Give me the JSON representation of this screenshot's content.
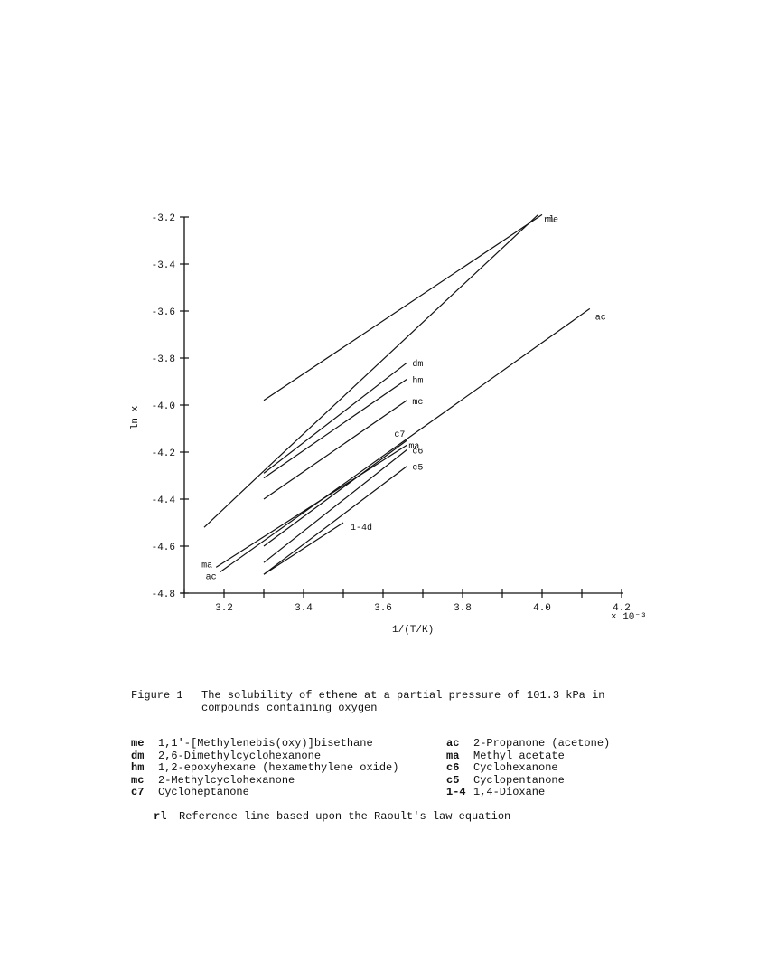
{
  "chart_data": {
    "type": "line",
    "title": "",
    "xlabel": "1/(T/K)",
    "x_multiplier": "× 10⁻³",
    "ylabel": "ln x",
    "xlim": [
      3.1,
      4.2
    ],
    "ylim": [
      -4.8,
      -3.2
    ],
    "x_ticks": [
      "3.2",
      "3.4",
      "3.6",
      "3.8",
      "4.0",
      "4.2"
    ],
    "x_tick_values": [
      3.2,
      3.4,
      3.6,
      3.8,
      4.0,
      4.2
    ],
    "y_ticks": [
      "-3.2",
      "-3.4",
      "-3.6",
      "-3.8",
      "-4.0",
      "-4.2",
      "-4.4",
      "-4.6",
      "-4.8"
    ],
    "y_tick_values": [
      -3.2,
      -3.4,
      -3.6,
      -3.8,
      -4.0,
      -4.2,
      -4.4,
      -4.6,
      -4.8
    ],
    "grid": false,
    "series": [
      {
        "name": "me",
        "x": [
          3.3,
          4.0
        ],
        "y": [
          -3.98,
          -3.19
        ]
      },
      {
        "name": "rl",
        "x": [
          3.3,
          3.99
        ],
        "y": [
          -4.28,
          -3.19
        ]
      },
      {
        "name": "ac",
        "x": [
          3.19,
          4.12
        ],
        "y": [
          -4.71,
          -3.59
        ]
      },
      {
        "name": "dm",
        "x": [
          3.3,
          3.66
        ],
        "y": [
          -4.29,
          -3.82
        ]
      },
      {
        "name": "hm",
        "x": [
          3.3,
          3.66
        ],
        "y": [
          -4.31,
          -3.89
        ]
      },
      {
        "name": "mc",
        "x": [
          3.3,
          3.66
        ],
        "y": [
          -4.4,
          -3.98
        ]
      },
      {
        "name": "c7",
        "x": [
          3.3,
          3.66
        ],
        "y": [
          -4.6,
          -4.15
        ]
      },
      {
        "name": "ma",
        "x": [
          3.18,
          3.66
        ],
        "y": [
          -4.69,
          -4.17
        ]
      },
      {
        "name": "c6",
        "x": [
          3.3,
          3.66
        ],
        "y": [
          -4.67,
          -4.19
        ]
      },
      {
        "name": "c5",
        "x": [
          3.3,
          3.66
        ],
        "y": [
          -4.72,
          -4.26
        ]
      },
      {
        "name": "1-4d",
        "x": [
          3.3,
          3.5
        ],
        "y": [
          -4.72,
          -4.5
        ]
      },
      {
        "name": "",
        "x": [
          3.15,
          3.3
        ],
        "y": [
          -4.52,
          -4.28
        ]
      }
    ]
  },
  "caption": {
    "figure": "Figure 1",
    "text": "The solubility of ethene at a partial pressure of 101.3 kPa in compounds containing oxygen"
  },
  "legend_left": [
    {
      "abbr": "me",
      "text": "1,1'-[Methylenebis(oxy)]bisethane"
    },
    {
      "abbr": "dm",
      "text": "2,6-Dimethylcyclohexanone"
    },
    {
      "abbr": "hm",
      "text": "1,2-epoxyhexane (hexamethylene oxide)"
    },
    {
      "abbr": "mc",
      "text": "2-Methylcyclohexanone"
    },
    {
      "abbr": "c7",
      "text": "Cycloheptanone"
    }
  ],
  "legend_right": [
    {
      "abbr": "ac",
      "text": "2-Propanone (acetone)"
    },
    {
      "abbr": "ma",
      "text": "Methyl acetate"
    },
    {
      "abbr": "c6",
      "text": "Cyclohexanone"
    },
    {
      "abbr": "c5",
      "text": "Cyclopentanone"
    },
    {
      "abbr": "1-4",
      "text": "1,4-Dioxane"
    }
  ],
  "note": {
    "abbr": "rl",
    "text": "Reference line based upon the Raoult's law equation"
  }
}
